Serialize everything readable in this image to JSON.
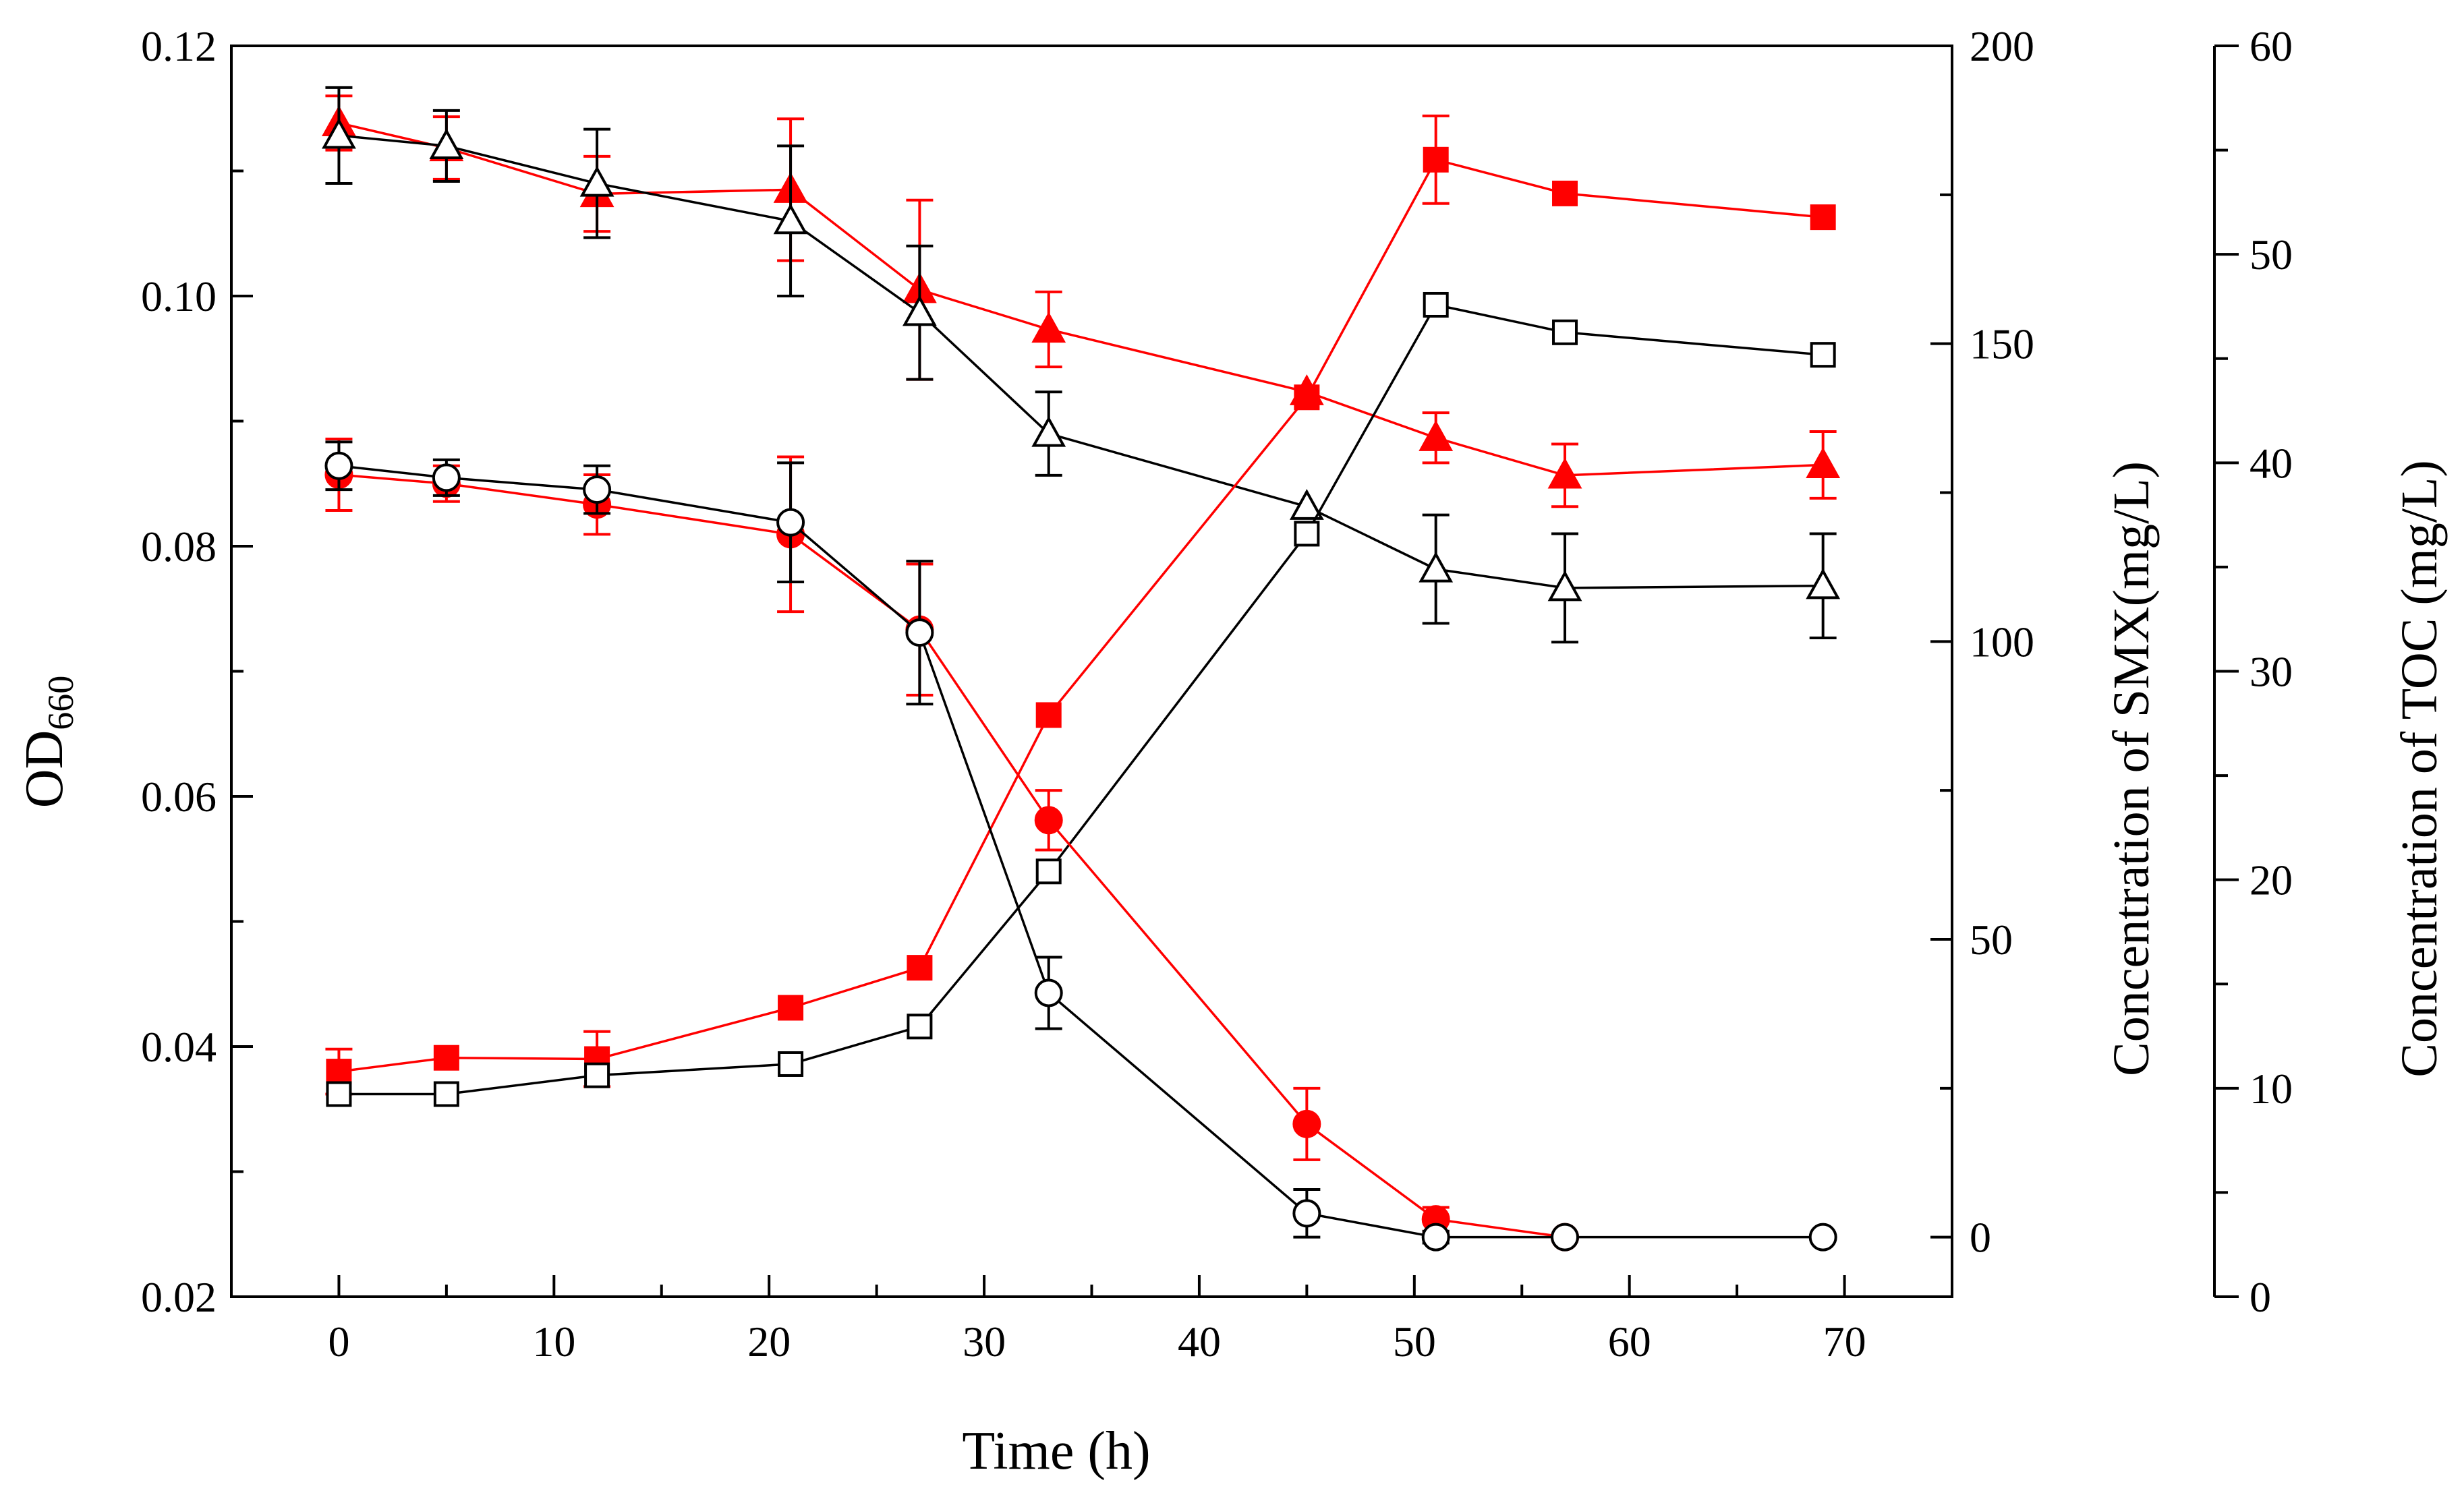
{
  "chart_data": {
    "type": "line",
    "title": "",
    "xlabel": "Time (h)",
    "ylabel": "OD",
    "ylabel_sub": "660",
    "y2label": "Concentration of SMX(mg/L)",
    "y3label": "Concentration of TOC (mg/L)",
    "xlim": [
      -5,
      75
    ],
    "ylim": [
      0.02,
      0.12
    ],
    "y2lim": [
      -10,
      200
    ],
    "y3lim": [
      0,
      60
    ],
    "xticks": [
      0,
      10,
      20,
      30,
      40,
      50,
      60,
      70
    ],
    "yticks": [
      0.02,
      0.04,
      0.06,
      0.08,
      0.1,
      0.12
    ],
    "ytick_labels": [
      "0.02",
      "0.04",
      "0.06",
      "0.08",
      "0.10",
      "0.12"
    ],
    "y2ticks": [
      0,
      50,
      100,
      150,
      200
    ],
    "y3ticks": [
      0,
      10,
      20,
      30,
      40,
      50,
      60
    ],
    "series": [
      {
        "name": "OD660 (red)",
        "axis": "y",
        "color": "#ff0000",
        "marker": "square",
        "filled": true,
        "x": [
          0,
          5,
          12,
          21,
          27,
          33,
          45,
          51,
          57,
          69
        ],
        "values": [
          0.038,
          0.0391,
          0.039,
          0.0431,
          0.0463,
          0.0665,
          0.0919,
          0.1109,
          0.1082,
          0.1063
        ],
        "errors": [
          0.0018,
          0,
          0.0022,
          0,
          0,
          0,
          0,
          0.0035,
          0,
          0
        ]
      },
      {
        "name": "OD660 (black)",
        "axis": "y",
        "color": "#000000",
        "marker": "square",
        "filled": false,
        "x": [
          0,
          5,
          12,
          21,
          27,
          33,
          45,
          51,
          57,
          69
        ],
        "values": [
          0.0362,
          0.0362,
          0.0377,
          0.0386,
          0.0416,
          0.054,
          0.081,
          0.0993,
          0.0971,
          0.0953
        ],
        "errors": [
          0,
          0,
          0,
          0,
          0,
          0,
          0,
          0,
          0,
          0
        ]
      },
      {
        "name": "SMX (red)",
        "axis": "y2",
        "color": "#ff0000",
        "marker": "circle",
        "filled": true,
        "x": [
          0,
          5,
          12,
          21,
          27,
          33,
          45,
          51,
          57
        ],
        "values": [
          128,
          126.5,
          123,
          118,
          102,
          70,
          19,
          3,
          0
        ],
        "errors": [
          6,
          3,
          5,
          13,
          11,
          5,
          6,
          2,
          0
        ]
      },
      {
        "name": "SMX (black)",
        "axis": "y2",
        "color": "#000000",
        "marker": "circle",
        "filled": false,
        "x": [
          0,
          5,
          12,
          21,
          27,
          33,
          45,
          51,
          57,
          69
        ],
        "values": [
          129.5,
          127.5,
          125.5,
          120,
          101.5,
          41,
          4,
          0,
          0,
          0
        ],
        "errors": [
          4,
          3,
          4,
          10,
          12,
          6,
          4,
          1,
          0,
          0
        ]
      },
      {
        "name": "TOC (red)",
        "axis": "y3",
        "color": "#ff0000",
        "marker": "triangle",
        "filled": true,
        "x": [
          0,
          5,
          12,
          21,
          27,
          33,
          45,
          51,
          57,
          69
        ],
        "values": [
          56.3,
          55.1,
          52.9,
          53.1,
          48.3,
          46.4,
          43.4,
          41.2,
          39.4,
          39.9
        ],
        "errors": [
          1.3,
          1.5,
          1.8,
          3.4,
          4.3,
          1.8,
          0,
          1.2,
          1.5,
          1.6
        ]
      },
      {
        "name": "TOC (black)",
        "axis": "y3",
        "color": "#000000",
        "marker": "triangle",
        "filled": false,
        "x": [
          0,
          5,
          12,
          21,
          27,
          33,
          45,
          51,
          57,
          69
        ],
        "values": [
          55.7,
          55.2,
          53.4,
          51.6,
          47.2,
          41.4,
          37.9,
          34.9,
          34.0,
          34.1
        ],
        "errors": [
          2.3,
          1.7,
          2.6,
          3.6,
          3.2,
          2.0,
          0,
          2.6,
          2.6,
          2.5
        ]
      }
    ]
  }
}
